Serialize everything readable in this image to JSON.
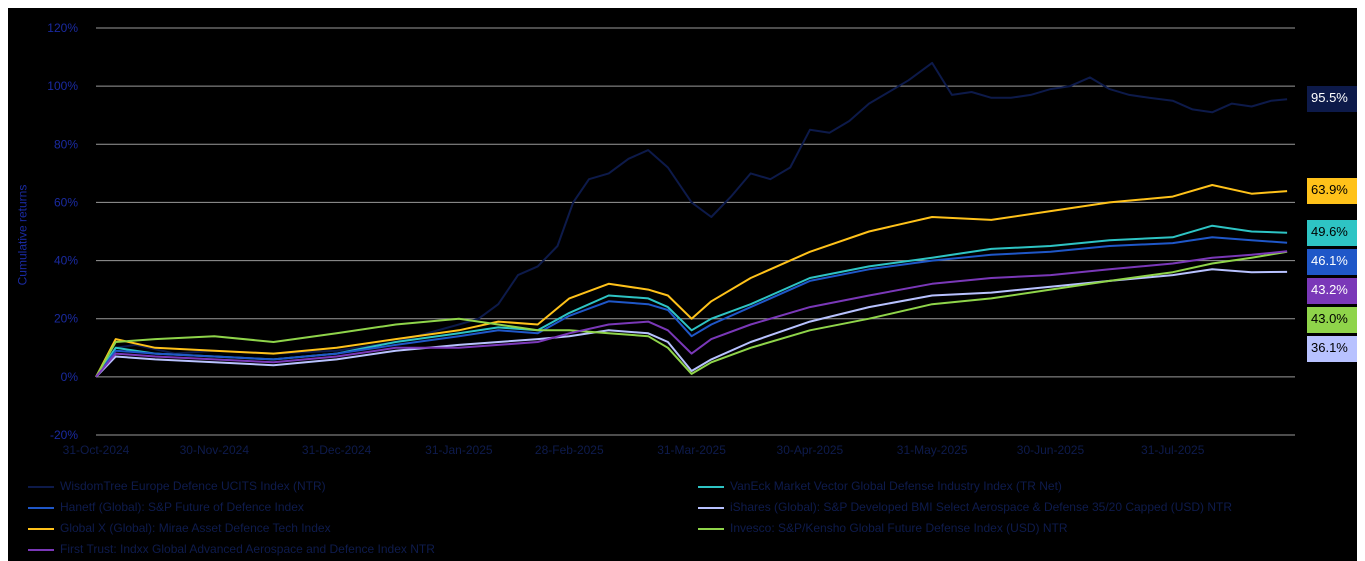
{
  "chart_data": {
    "type": "line",
    "ylabel": "Cumulative returns",
    "xlabel": "",
    "ylim": [
      -20,
      120
    ],
    "yticks": [
      -20,
      0,
      20,
      40,
      60,
      80,
      100,
      120
    ],
    "ytick_labels": [
      "-20%",
      "0%",
      "20%",
      "40%",
      "60%",
      "80%",
      "100%",
      "120%"
    ],
    "x_range": [
      "2024-10-31",
      "2025-08-31"
    ],
    "x_tick_labels": [
      "31-Oct-2024",
      "30-Nov-2024",
      "31-Dec-2024",
      "31-Jan-2025",
      "28-Feb-2025",
      "31-Mar-2025",
      "30-Apr-2025",
      "31-May-2025",
      "30-Jun-2025",
      "31-Jul-2025"
    ],
    "x_ticks": [
      "2024-10-31",
      "2024-11-30",
      "2024-12-31",
      "2025-01-31",
      "2025-02-28",
      "2025-03-31",
      "2025-04-30",
      "2025-05-31",
      "2025-06-30",
      "2025-07-31"
    ],
    "grid": "horizontal",
    "legend_position": "bottom",
    "series": [
      {
        "name": "WisdomTree Europe Defence UCITS Index (NTR)",
        "color": "#0d1a4a",
        "end_label": "95.5%",
        "x": [
          "2024-10-31",
          "2024-11-05",
          "2024-11-10",
          "2024-11-20",
          "2024-11-30",
          "2024-12-15",
          "2024-12-31",
          "2025-01-15",
          "2025-01-31",
          "2025-02-05",
          "2025-02-10",
          "2025-02-15",
          "2025-02-20",
          "2025-02-25",
          "2025-03-01",
          "2025-03-05",
          "2025-03-10",
          "2025-03-15",
          "2025-03-20",
          "2025-03-25",
          "2025-03-31",
          "2025-04-05",
          "2025-04-10",
          "2025-04-15",
          "2025-04-20",
          "2025-04-25",
          "2025-04-30",
          "2025-05-05",
          "2025-05-10",
          "2025-05-15",
          "2025-05-20",
          "2025-05-25",
          "2025-05-31",
          "2025-06-05",
          "2025-06-10",
          "2025-06-15",
          "2025-06-20",
          "2025-06-25",
          "2025-06-30",
          "2025-07-05",
          "2025-07-10",
          "2025-07-15",
          "2025-07-20",
          "2025-07-25",
          "2025-07-31",
          "2025-08-05",
          "2025-08-10",
          "2025-08-15",
          "2025-08-20",
          "2025-08-25",
          "2025-08-29"
        ],
        "values": [
          0,
          10,
          11,
          8,
          9,
          8,
          9,
          12,
          18,
          20,
          25,
          35,
          38,
          45,
          60,
          68,
          70,
          75,
          78,
          72,
          60,
          55,
          62,
          70,
          68,
          72,
          85,
          84,
          88,
          94,
          98,
          102,
          108,
          97,
          98,
          96,
          96,
          97,
          99,
          100,
          103,
          99,
          97,
          96,
          95,
          92,
          91,
          94,
          93,
          95,
          95.5
        ]
      },
      {
        "name": "VanEck Market Vector Global Defense Industry Index (TR Net)",
        "color": "#2ec4c4",
        "end_label": "49.6%",
        "x": [
          "2024-10-31",
          "2024-11-05",
          "2024-11-15",
          "2024-11-30",
          "2024-12-15",
          "2024-12-31",
          "2025-01-15",
          "2025-01-31",
          "2025-02-10",
          "2025-02-20",
          "2025-02-28",
          "2025-03-10",
          "2025-03-20",
          "2025-03-25",
          "2025-03-31",
          "2025-04-05",
          "2025-04-15",
          "2025-04-30",
          "2025-05-15",
          "2025-05-31",
          "2025-06-15",
          "2025-06-30",
          "2025-07-15",
          "2025-07-31",
          "2025-08-10",
          "2025-08-20",
          "2025-08-29"
        ],
        "values": [
          0,
          10,
          8,
          7,
          6,
          8,
          12,
          15,
          17,
          16,
          22,
          28,
          27,
          24,
          16,
          20,
          25,
          34,
          38,
          41,
          44,
          45,
          47,
          48,
          52,
          50,
          49.6
        ]
      },
      {
        "name": "Hanetf (Global): S&P Future of Defence Index",
        "color": "#1f57c8",
        "end_label": "46.1%",
        "x": [
          "2024-10-31",
          "2024-11-05",
          "2024-11-15",
          "2024-11-30",
          "2024-12-15",
          "2024-12-31",
          "2025-01-15",
          "2025-01-31",
          "2025-02-10",
          "2025-02-20",
          "2025-02-28",
          "2025-03-10",
          "2025-03-20",
          "2025-03-25",
          "2025-03-31",
          "2025-04-05",
          "2025-04-15",
          "2025-04-30",
          "2025-05-15",
          "2025-05-31",
          "2025-06-15",
          "2025-06-30",
          "2025-07-15",
          "2025-07-31",
          "2025-08-10",
          "2025-08-20",
          "2025-08-29"
        ],
        "values": [
          0,
          9,
          8,
          7,
          6,
          8,
          11,
          14,
          16,
          15,
          21,
          26,
          25,
          23,
          14,
          18,
          24,
          33,
          37,
          40,
          42,
          43,
          45,
          46,
          48,
          47,
          46.1
        ]
      },
      {
        "name": "iShares (Global): S&P Developed BMI Select Aerospace & Defense 35/20 Capped (USD) NTR",
        "color": "#b8c2ff",
        "end_label": "36.1%",
        "x": [
          "2024-10-31",
          "2024-11-05",
          "2024-11-15",
          "2024-11-30",
          "2024-12-15",
          "2024-12-31",
          "2025-01-15",
          "2025-01-31",
          "2025-02-10",
          "2025-02-20",
          "2025-02-28",
          "2025-03-10",
          "2025-03-20",
          "2025-03-25",
          "2025-03-31",
          "2025-04-05",
          "2025-04-15",
          "2025-04-30",
          "2025-05-15",
          "2025-05-31",
          "2025-06-15",
          "2025-06-30",
          "2025-07-15",
          "2025-07-31",
          "2025-08-10",
          "2025-08-20",
          "2025-08-29"
        ],
        "values": [
          0,
          7,
          6,
          5,
          4,
          6,
          9,
          11,
          12,
          13,
          14,
          16,
          15,
          12,
          2,
          6,
          12,
          19,
          24,
          28,
          29,
          31,
          33,
          35,
          37,
          36,
          36.1
        ]
      },
      {
        "name": "Global X (Global): Mirae Asset Defence Tech Index",
        "color": "#ffc21a",
        "end_label": "63.9%",
        "x": [
          "2024-10-31",
          "2024-11-05",
          "2024-11-15",
          "2024-11-30",
          "2024-12-15",
          "2024-12-31",
          "2025-01-15",
          "2025-01-31",
          "2025-02-10",
          "2025-02-20",
          "2025-02-28",
          "2025-03-10",
          "2025-03-20",
          "2025-03-25",
          "2025-03-31",
          "2025-04-05",
          "2025-04-15",
          "2025-04-30",
          "2025-05-15",
          "2025-05-31",
          "2025-06-15",
          "2025-06-30",
          "2025-07-15",
          "2025-07-31",
          "2025-08-10",
          "2025-08-20",
          "2025-08-29"
        ],
        "values": [
          0,
          13,
          10,
          9,
          8,
          10,
          13,
          16,
          19,
          18,
          27,
          32,
          30,
          28,
          20,
          26,
          34,
          43,
          50,
          55,
          54,
          57,
          60,
          62,
          66,
          63,
          63.9
        ]
      },
      {
        "name": "Invesco: S&P/Kensho Global Future Defense Index (USD) NTR",
        "color": "#8fd44a",
        "end_label": "43.0%",
        "x": [
          "2024-10-31",
          "2024-11-05",
          "2024-11-15",
          "2024-11-30",
          "2024-12-15",
          "2024-12-31",
          "2025-01-15",
          "2025-01-31",
          "2025-02-10",
          "2025-02-20",
          "2025-02-28",
          "2025-03-10",
          "2025-03-20",
          "2025-03-25",
          "2025-03-31",
          "2025-04-05",
          "2025-04-15",
          "2025-04-30",
          "2025-05-15",
          "2025-05-31",
          "2025-06-15",
          "2025-06-30",
          "2025-07-15",
          "2025-07-31",
          "2025-08-10",
          "2025-08-20",
          "2025-08-29"
        ],
        "values": [
          0,
          12,
          13,
          14,
          12,
          15,
          18,
          20,
          18,
          16,
          16,
          15,
          14,
          10,
          1,
          5,
          10,
          16,
          20,
          25,
          27,
          30,
          33,
          36,
          39,
          41,
          43.0
        ]
      },
      {
        "name": "First Trust: Indxx Global Advanced Aerospace and Defence Index NTR",
        "color": "#7a38b8",
        "end_label": "43.2%",
        "x": [
          "2024-10-31",
          "2024-11-05",
          "2024-11-15",
          "2024-11-30",
          "2024-12-15",
          "2024-12-31",
          "2025-01-15",
          "2025-01-31",
          "2025-02-10",
          "2025-02-20",
          "2025-02-28",
          "2025-03-10",
          "2025-03-20",
          "2025-03-25",
          "2025-03-31",
          "2025-04-05",
          "2025-04-15",
          "2025-04-30",
          "2025-05-15",
          "2025-05-31",
          "2025-06-15",
          "2025-06-30",
          "2025-07-15",
          "2025-07-31",
          "2025-08-10",
          "2025-08-20",
          "2025-08-29"
        ],
        "values": [
          0,
          8,
          7,
          6,
          5,
          7,
          10,
          10,
          11,
          12,
          15,
          18,
          19,
          16,
          8,
          13,
          18,
          24,
          28,
          32,
          34,
          35,
          37,
          39,
          41,
          42,
          43.2
        ]
      }
    ]
  }
}
